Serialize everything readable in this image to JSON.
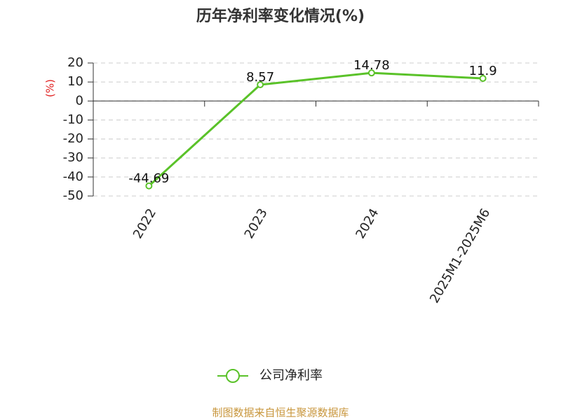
{
  "chart_data": {
    "type": "line",
    "title": "历年净利率变化情况(%)",
    "y_label": "(%)",
    "categories": [
      "2022",
      "2023",
      "2024",
      "2025M1-2025M6"
    ],
    "series": [
      {
        "name": "公司净利率",
        "color": "#5ac229",
        "values": [
          -44.69,
          8.57,
          14.78,
          11.9
        ]
      }
    ],
    "ylim": [
      -50,
      20
    ],
    "yticks": [
      20,
      10,
      0,
      -10,
      -20,
      -30,
      -40,
      -50
    ],
    "grid": true,
    "legend": "bottom",
    "source": "制图数据来自恒生聚源数据库"
  }
}
